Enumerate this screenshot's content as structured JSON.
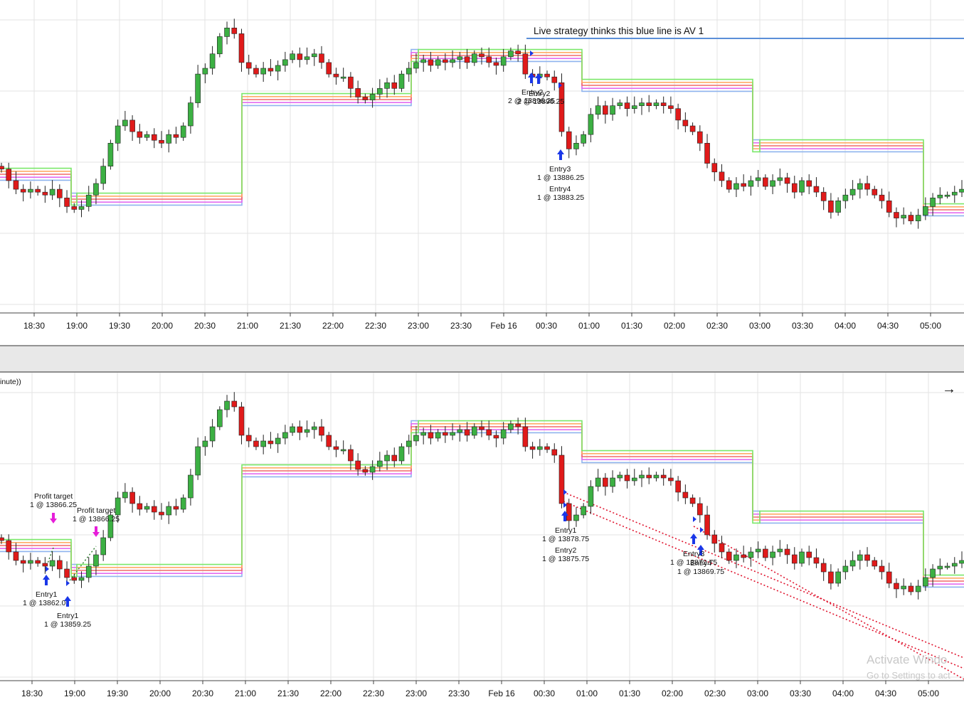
{
  "top_panel": {
    "note_label": "Live strategy thinks this blue line is AV 1",
    "annotations": [
      {
        "label": "Entry2",
        "detail": "2 @ 13896.25"
      },
      {
        "label": "Entry2",
        "detail": "2 @ 13896.25"
      },
      {
        "label": "Entry3",
        "detail": "1 @ 13886.25"
      },
      {
        "label": "Entry4",
        "detail": "1 @ 13883.25"
      }
    ]
  },
  "bottom_panel": {
    "series_label_fragment": "inute))",
    "nav_arrow": "→",
    "annotations": [
      {
        "label": "Profit target",
        "detail": "1 @ 13866.25"
      },
      {
        "label": "Profit target",
        "detail": "1 @ 13866.25"
      },
      {
        "label": "Entry1",
        "detail": "1 @ 13862.0"
      },
      {
        "label": "Entry1",
        "detail": "1 @ 13859.25"
      },
      {
        "label": "Entry1",
        "detail": "1 @ 13878.75"
      },
      {
        "label": "Entry2",
        "detail": "1 @ 13875.75"
      },
      {
        "label": "Entry3",
        "detail": "1 @ 13872.75"
      },
      {
        "label": "Entry4",
        "detail": "1 @ 13869.75"
      }
    ]
  },
  "watermark": {
    "line1": "Activate Windo",
    "line2": "Go to Settings to act"
  },
  "chart_data": {
    "type": "candlestick",
    "x_axis_ticks": [
      "18:30",
      "19:00",
      "19:30",
      "20:00",
      "20:30",
      "21:00",
      "21:30",
      "22:00",
      "22:30",
      "23:00",
      "23:30",
      "Feb 16",
      "00:30",
      "01:00",
      "01:30",
      "02:00",
      "02:30",
      "03:00",
      "03:30",
      "04:00",
      "04:30",
      "05:00"
    ],
    "closes": [
      13875,
      13871,
      13868,
      13867,
      13868,
      13867,
      13866,
      13868,
      13865,
      13862,
      13861,
      13862,
      13866,
      13870,
      13876,
      13884,
      13890,
      13892,
      13888,
      13886,
      13887,
      13885,
      13884,
      13887,
      13886,
      13890,
      13898,
      13908,
      13910,
      13915,
      13921,
      13924,
      13922,
      13912,
      13910,
      13908,
      13910,
      13909,
      13911,
      13913,
      13915,
      13913,
      13914,
      13915,
      13912,
      13908,
      13907,
      13907,
      13903,
      13900,
      13899,
      13901,
      13903,
      13905,
      13903,
      13908,
      13910,
      13912,
      13913,
      13911,
      13913,
      13912,
      13913,
      13914,
      13912,
      13915,
      13914,
      13912,
      13911,
      13914,
      13916,
      13915,
      13908,
      13907,
      13908,
      13907,
      13905,
      13888,
      13882,
      13884,
      13887,
      13894,
      13897,
      13894,
      13897,
      13898,
      13896,
      13897,
      13898,
      13897,
      13898,
      13897,
      13896,
      13892,
      13890,
      13888,
      13884,
      13877,
      13874,
      13871,
      13868,
      13870,
      13869,
      13871,
      13872,
      13869,
      13871,
      13872,
      13870,
      13867,
      13871,
      13869,
      13867,
      13864,
      13860,
      13864,
      13866,
      13868,
      13870,
      13868,
      13866,
      13864,
      13860,
      13858,
      13859,
      13857,
      13859,
      13862,
      13865,
      13866,
      13866,
      13867,
      13868
    ],
    "close_units": "index points",
    "colors": {
      "up": "#3cb043",
      "down": "#e01a1a",
      "wick": "#222222",
      "blue_line": "#5b8fd8",
      "bands": [
        "#8fb4ee",
        "#e36cf0",
        "#f26a6a",
        "#ffab66",
        "#7be86a"
      ],
      "entry_arrow": "#1a37e8",
      "target_arrow": "#e61ed9",
      "short_trend": "#e0152f"
    },
    "grid": true
  }
}
